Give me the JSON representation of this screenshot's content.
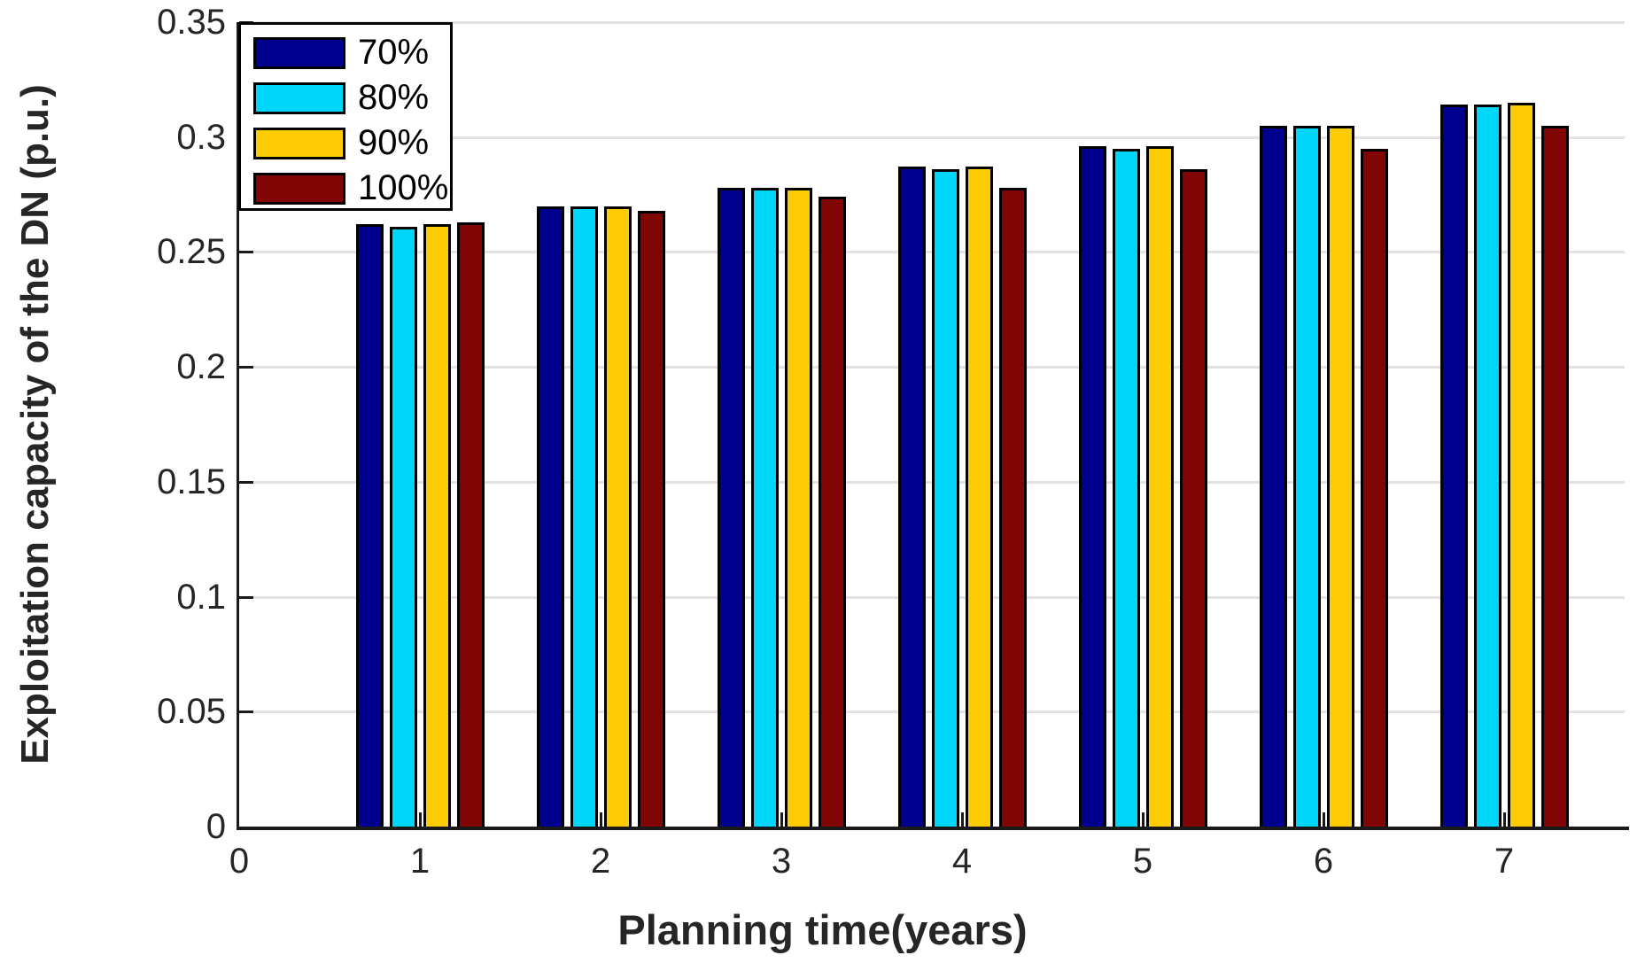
{
  "chart_data": {
    "type": "bar",
    "title": "",
    "xlabel": "Planning time(years)",
    "ylabel": "Exploitation capacity of the DN (p.u.)",
    "categories": [
      1,
      2,
      3,
      4,
      5,
      6,
      7
    ],
    "series": [
      {
        "name": "70%",
        "color": "#00008F",
        "values": [
          0.262,
          0.27,
          0.278,
          0.287,
          0.296,
          0.305,
          0.314
        ]
      },
      {
        "name": "80%",
        "color": "#00D5FA",
        "values": [
          0.261,
          0.27,
          0.278,
          0.286,
          0.295,
          0.305,
          0.314
        ]
      },
      {
        "name": "90%",
        "color": "#FFCB05",
        "values": [
          0.262,
          0.27,
          0.278,
          0.287,
          0.296,
          0.305,
          0.315
        ]
      },
      {
        "name": "100%",
        "color": "#820505",
        "values": [
          0.263,
          0.268,
          0.274,
          0.278,
          0.286,
          0.295,
          0.305
        ]
      }
    ],
    "ylim": [
      0,
      0.35
    ],
    "xlim": [
      0,
      7.67
    ],
    "y_tick_labels": [
      "0",
      "0.05",
      "0.1",
      "0.15",
      "0.2",
      "0.25",
      "0.3",
      "0.35"
    ],
    "y_tick_values": [
      0,
      0.05,
      0.1,
      0.15,
      0.2,
      0.25,
      0.3,
      0.35
    ],
    "x_tick_labels": [
      "0",
      "1",
      "2",
      "3",
      "4",
      "5",
      "6",
      "7"
    ],
    "x_tick_values": [
      0,
      1,
      2,
      3,
      4,
      5,
      6,
      7
    ],
    "grid": "horizontal",
    "legend_position": "top-left",
    "colors": {
      "background": "#ffffff",
      "gridline": "#e2e2e2",
      "axis": "#1a1a1a",
      "tick_text": "#262626",
      "bar_edge": "#000000"
    }
  }
}
